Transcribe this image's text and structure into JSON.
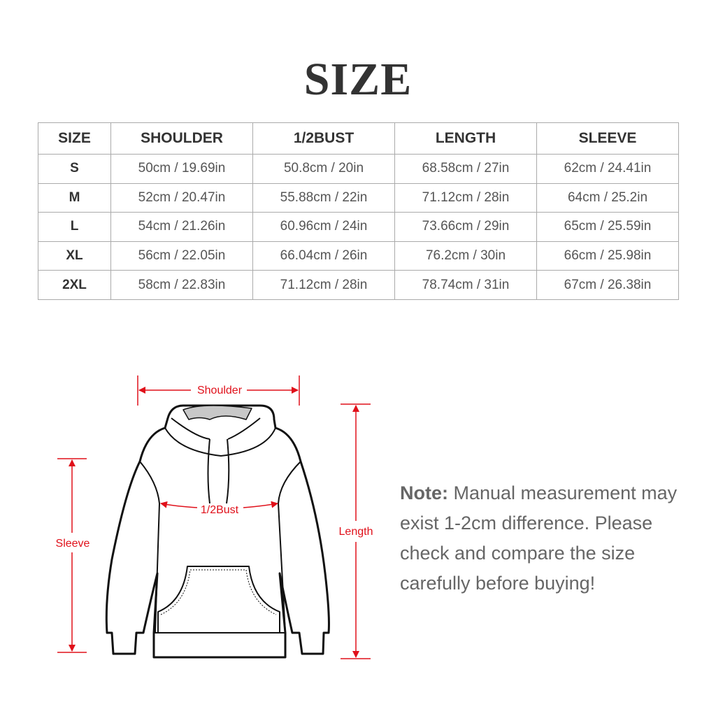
{
  "title": "SIZE",
  "table": {
    "headers": [
      "SIZE",
      "SHOULDER",
      "1/2BUST",
      "LENGTH",
      "SLEEVE"
    ],
    "rows": [
      [
        "S",
        "50cm / 19.69in",
        "50.8cm / 20in",
        "68.58cm / 27in",
        "62cm / 24.41in"
      ],
      [
        "M",
        "52cm / 20.47in",
        "55.88cm / 22in",
        "71.12cm / 28in",
        "64cm / 25.2in"
      ],
      [
        "L",
        "54cm / 21.26in",
        "60.96cm / 24in",
        "73.66cm / 29in",
        "65cm / 25.59in"
      ],
      [
        "XL",
        "56cm / 22.05in",
        "66.04cm / 26in",
        "76.2cm / 30in",
        "66cm / 25.98in"
      ],
      [
        "2XL",
        "58cm / 22.83in",
        "71.12cm / 28in",
        "78.74cm / 31in",
        "67cm / 26.38in"
      ]
    ]
  },
  "diagram": {
    "shoulder": "Shoulder",
    "bust": "1/2Bust",
    "sleeve": "Sleeve",
    "length": "Length",
    "accent": "#e0101a"
  },
  "note": {
    "label": "Note:",
    "text": " Manual measurement may exist 1-2cm difference. Please check and compare the size carefully before buying!"
  }
}
